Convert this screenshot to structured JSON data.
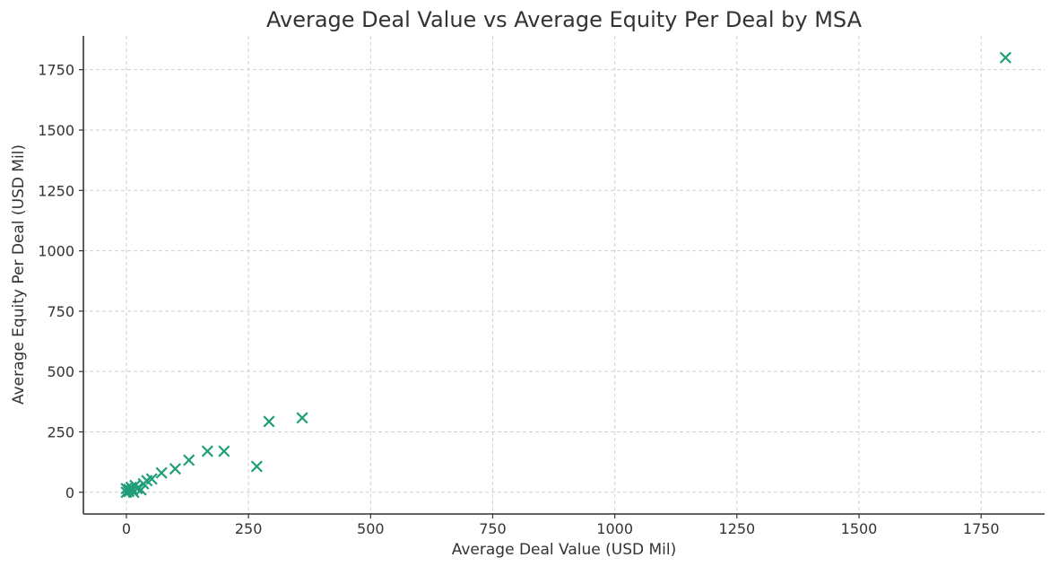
{
  "chart_data": {
    "type": "scatter",
    "title": "Average Deal Value vs Average Equity Per Deal by MSA",
    "xlabel": "Average Deal Value (USD Mil)",
    "ylabel": "Average Equity Per Deal (USD Mil)",
    "xlim": [
      -88,
      1880
    ],
    "ylim": [
      -90,
      1890
    ],
    "xticks": [
      0,
      250,
      500,
      750,
      1000,
      1250,
      1500,
      1750
    ],
    "yticks": [
      0,
      250,
      500,
      750,
      1000,
      1250,
      1500,
      1750
    ],
    "grid": true,
    "marker": "x",
    "color": "#1f9e7a",
    "series": [
      {
        "points": [
          {
            "x": 0,
            "y": 0
          },
          {
            "x": 0,
            "y": 15
          },
          {
            "x": 5,
            "y": 3
          },
          {
            "x": 5,
            "y": 12
          },
          {
            "x": 10,
            "y": 20
          },
          {
            "x": 12,
            "y": 8
          },
          {
            "x": 15,
            "y": 0
          },
          {
            "x": 18,
            "y": 28
          },
          {
            "x": 22,
            "y": 15
          },
          {
            "x": 30,
            "y": 10
          },
          {
            "x": 35,
            "y": 35
          },
          {
            "x": 42,
            "y": 48
          },
          {
            "x": 52,
            "y": 55
          },
          {
            "x": 72,
            "y": 80
          },
          {
            "x": 100,
            "y": 97
          },
          {
            "x": 128,
            "y": 133
          },
          {
            "x": 166,
            "y": 170
          },
          {
            "x": 200,
            "y": 170
          },
          {
            "x": 267,
            "y": 107
          },
          {
            "x": 292,
            "y": 293
          },
          {
            "x": 360,
            "y": 308
          },
          {
            "x": 1800,
            "y": 1800
          }
        ]
      }
    ]
  }
}
